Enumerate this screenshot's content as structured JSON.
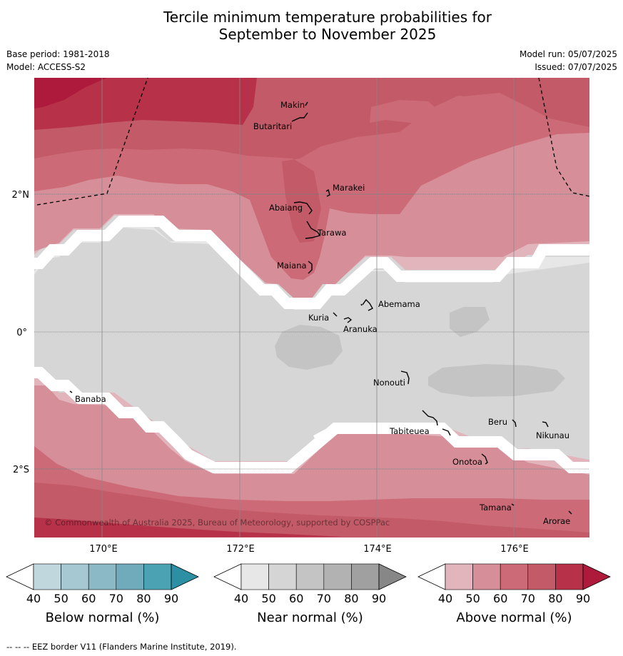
{
  "title": {
    "line1": "Tercile minimum temperature probabilities for",
    "line2": "September to November 2025"
  },
  "meta": {
    "base_period": "Base period: 1981-2018",
    "model": "Model: ACCESS-S2",
    "model_run": "Model run: 05/07/2025",
    "issued": "Issued: 07/07/2025"
  },
  "map": {
    "lat_labels": [
      "2°N",
      "0°",
      "2°S"
    ],
    "lon_labels": [
      "170°E",
      "172°E",
      "174°E",
      "176°E"
    ],
    "copyright": "© Commonwealth of Australia 2025, Bureau of Meteorology, supported by COSPPac",
    "places": [
      {
        "name": "Makin"
      },
      {
        "name": "Butaritari"
      },
      {
        "name": "Marakei"
      },
      {
        "name": "Abaiang"
      },
      {
        "name": "Tarawa"
      },
      {
        "name": "Maiana"
      },
      {
        "name": "Abemama"
      },
      {
        "name": "Kuria"
      },
      {
        "name": "Aranuka"
      },
      {
        "name": "Nonouti"
      },
      {
        "name": "Banaba"
      },
      {
        "name": "Beru"
      },
      {
        "name": "Tabiteuea"
      },
      {
        "name": "Nikunau"
      },
      {
        "name": "Onotoa"
      },
      {
        "name": "Tamana"
      },
      {
        "name": "Arorae"
      }
    ]
  },
  "legends": [
    {
      "label": "Below normal (%)",
      "ticks": [
        "40",
        "50",
        "60",
        "70",
        "80",
        "90"
      ],
      "colors": [
        "#ffffff",
        "#c1d7de",
        "#a5c8d2",
        "#8bbac6",
        "#6fabbb",
        "#4aa2b2",
        "#2d8fa4"
      ]
    },
    {
      "label": "Near normal (%)",
      "ticks": [
        "40",
        "50",
        "60",
        "70",
        "80",
        "90"
      ],
      "colors": [
        "#ffffff",
        "#e7e7e7",
        "#d5d5d5",
        "#c4c4c4",
        "#b2b2b2",
        "#a0a0a0",
        "#878787"
      ]
    },
    {
      "label": "Above normal (%)",
      "ticks": [
        "40",
        "50",
        "60",
        "70",
        "80",
        "90"
      ],
      "colors": [
        "#ffffff",
        "#e2b5bd",
        "#d68e98",
        "#cc6b77",
        "#c35a67",
        "#b73249",
        "#ad1a3b"
      ]
    }
  ],
  "footer": "--  --  -- EEZ border V11 (Flanders Marine Institute, 2019)."
}
